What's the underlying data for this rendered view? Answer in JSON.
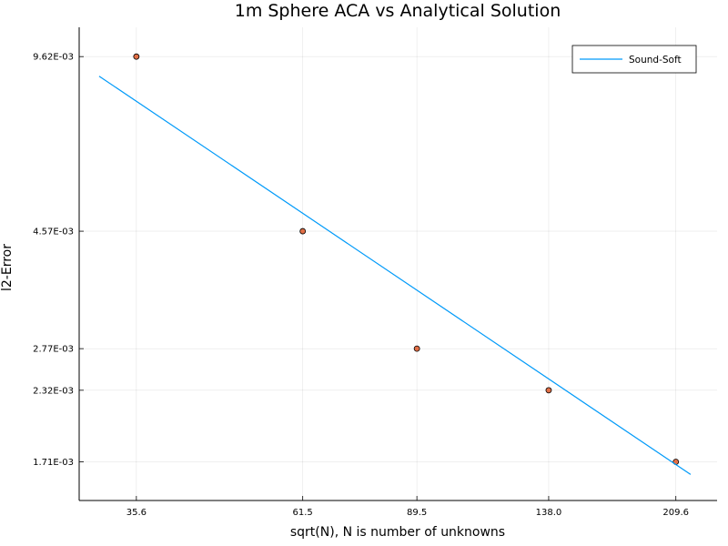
{
  "chart_data": {
    "type": "scatter",
    "title": "1m Sphere ACA vs Analytical Solution",
    "xlabel": "sqrt(N), N is number of unknowns",
    "ylabel": "l2-Error",
    "xscale": "log",
    "yscale": "log",
    "xlim": [
      29.5,
      240
    ],
    "ylim": [
      0.00145,
      0.0109
    ],
    "grid": true,
    "legend_position": "top-right",
    "x_ticks": [
      35.6,
      61.5,
      89.5,
      138.0,
      209.6
    ],
    "x_tick_labels": [
      "35.6",
      "61.5",
      "89.5",
      "138.0",
      "209.6"
    ],
    "y_ticks": [
      0.00962,
      0.00457,
      0.00277,
      0.00232,
      0.00171
    ],
    "y_tick_labels": [
      "9.62E-03",
      "4.57E-03",
      "2.77E-03",
      "2.32E-03",
      "1.71E-03"
    ],
    "series": [
      {
        "type": "scatter",
        "color": "#e26f46",
        "x": [
          35.6,
          61.5,
          89.5,
          138.0,
          209.6
        ],
        "y": [
          0.00962,
          0.00457,
          0.00277,
          0.00232,
          0.00171
        ]
      },
      {
        "name": "Sound-Soft",
        "type": "line",
        "color": "#009af9",
        "x": [
          31.5,
          220.0
        ],
        "y": [
          0.00885,
          0.00162
        ]
      }
    ]
  }
}
